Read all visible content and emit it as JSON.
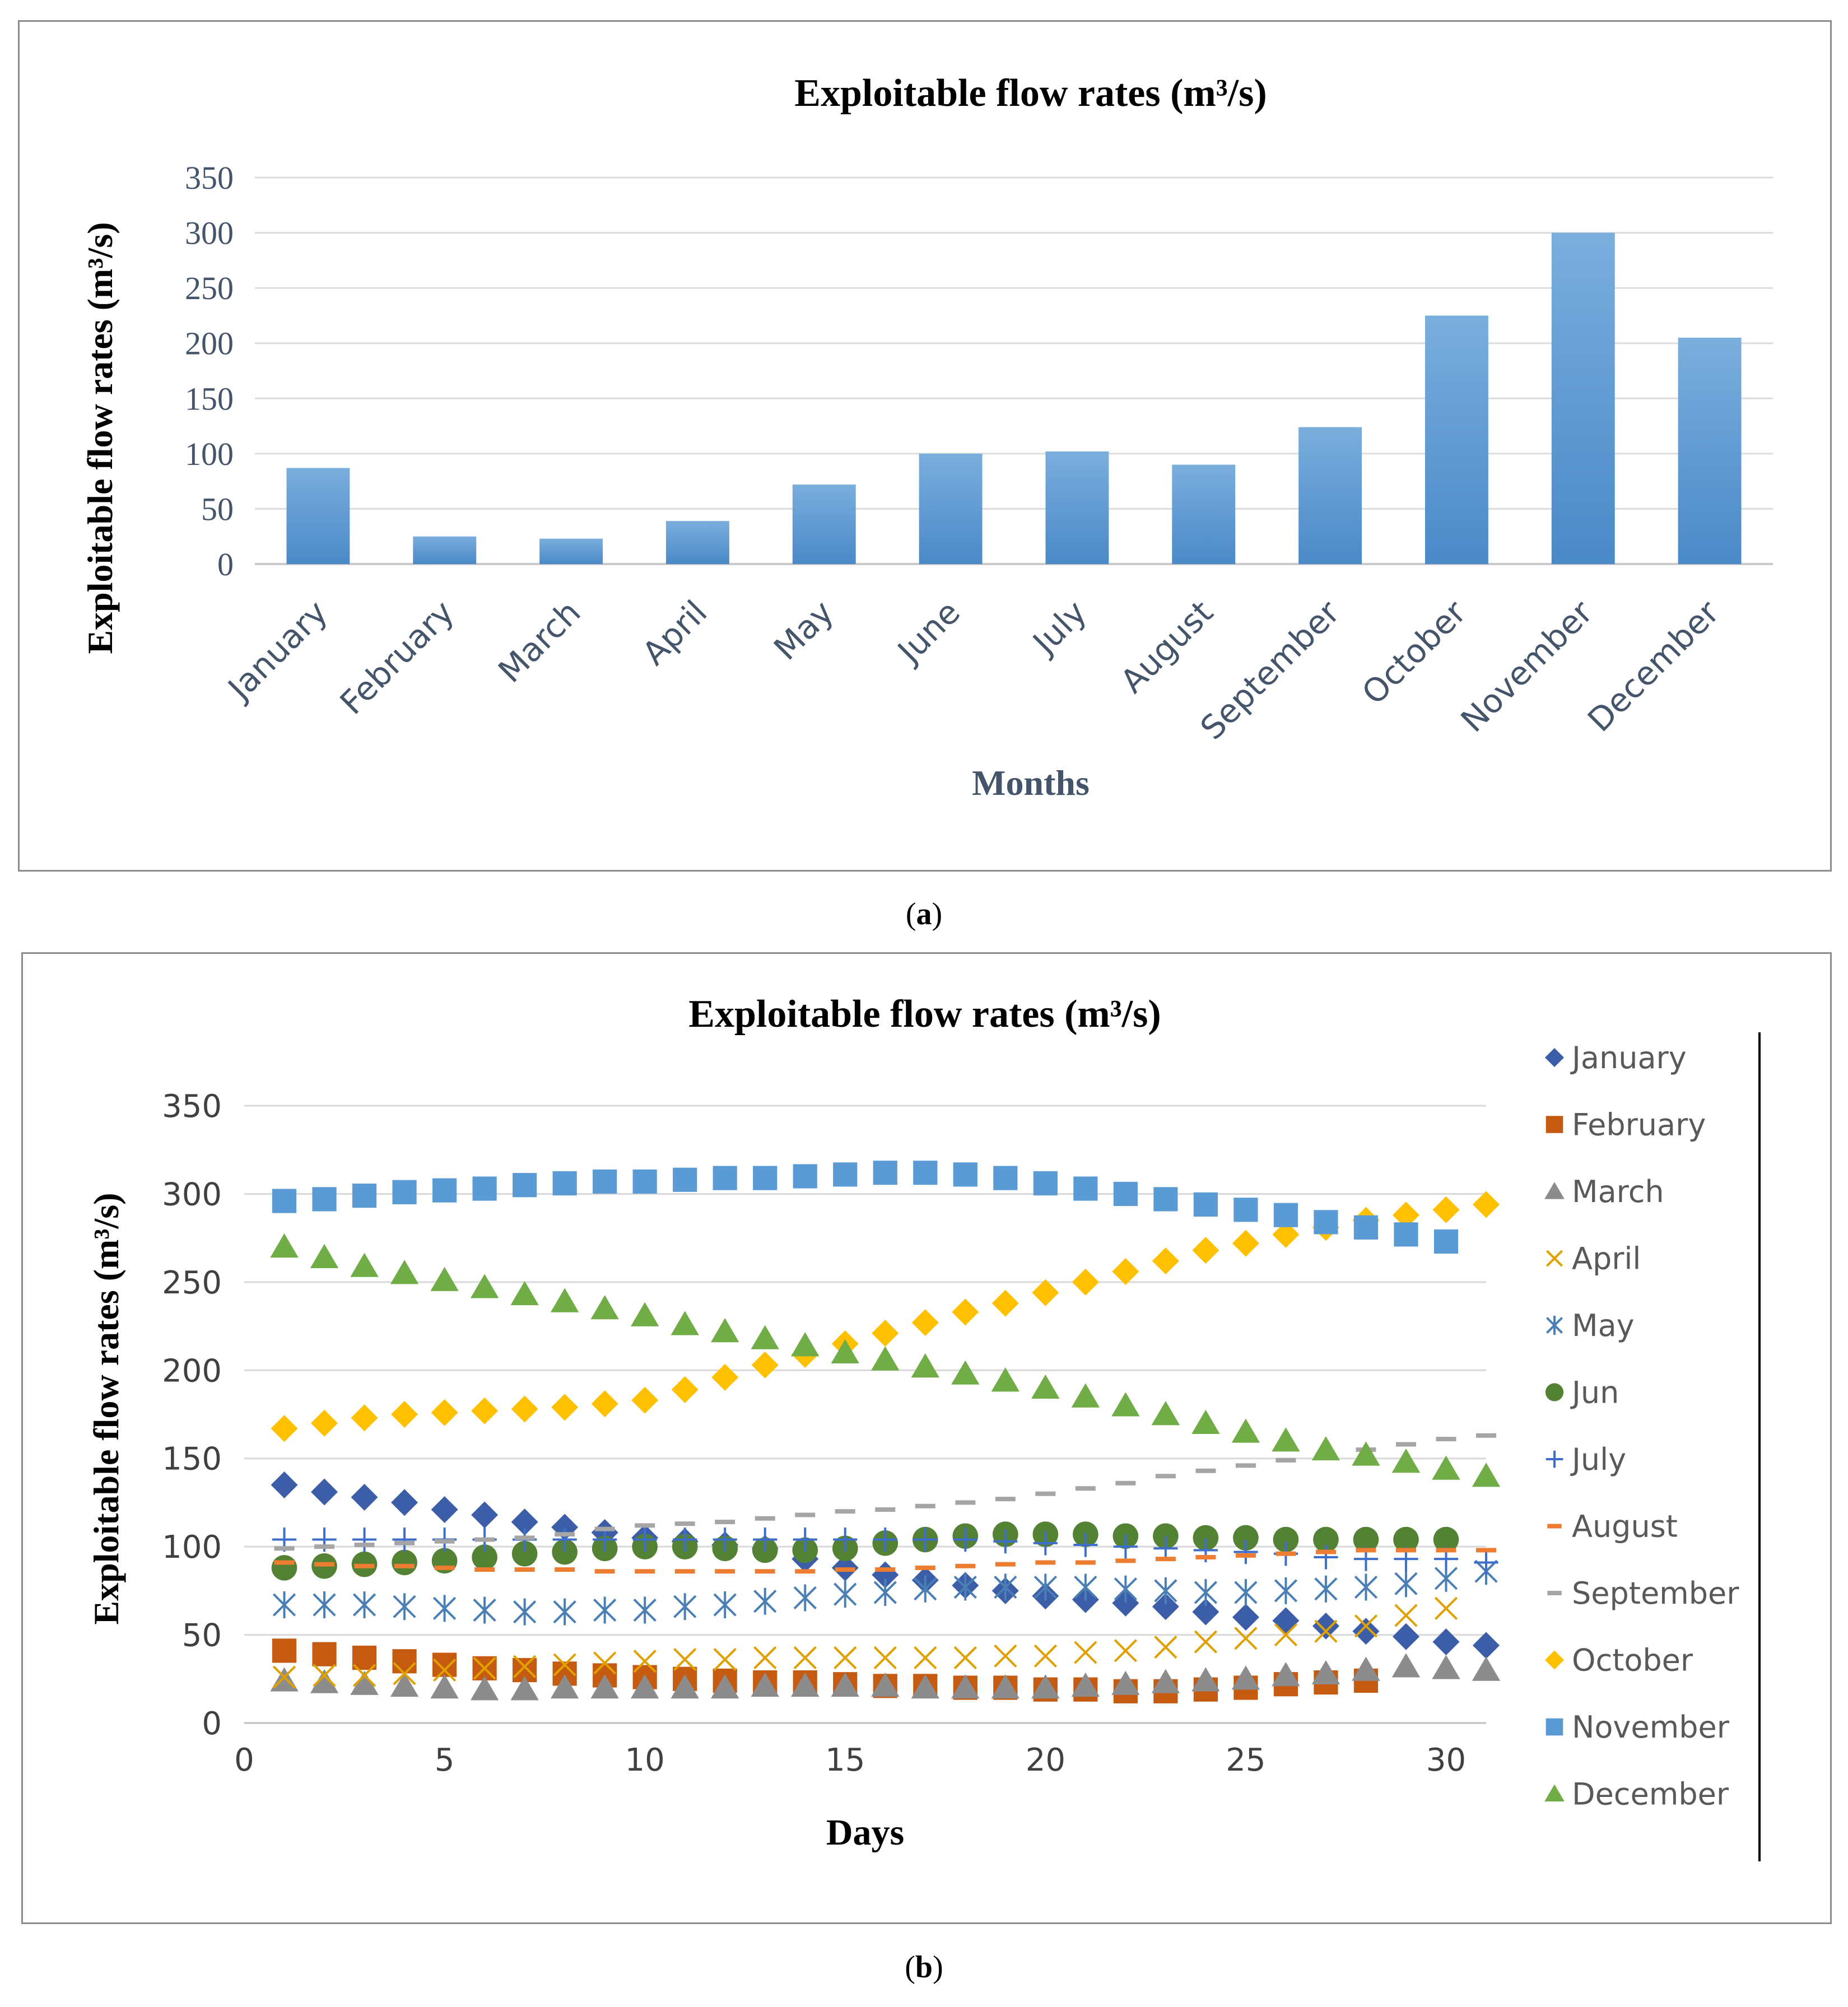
{
  "captions": {
    "a": "a",
    "b": "b"
  },
  "chart_data": [
    {
      "type": "bar",
      "title": "Exploitable flow rates (m³/s)",
      "xlabel": "Months",
      "ylabel": "Exploitable flow rates (m³/s)",
      "ylim": [
        0,
        350
      ],
      "yticks": [
        0,
        50,
        100,
        150,
        200,
        250,
        300,
        350
      ],
      "grid": true,
      "color": "#5b9bd5",
      "categories": [
        "January",
        "February",
        "March",
        "April",
        "May",
        "June",
        "July",
        "August",
        "September",
        "October",
        "November",
        "December"
      ],
      "values": [
        87,
        25,
        23,
        39,
        72,
        100,
        102,
        90,
        124,
        225,
        300,
        205
      ]
    },
    {
      "type": "scatter",
      "title": "Exploitable flow rates (m³/s)",
      "xlabel": "Days",
      "ylabel": "Exploitable flow rates (m³/s)",
      "xlim": [
        0,
        31
      ],
      "ylim": [
        0,
        350
      ],
      "xticks": [
        0,
        5,
        10,
        15,
        20,
        25,
        30
      ],
      "yticks": [
        0,
        50,
        100,
        150,
        200,
        250,
        300,
        350
      ],
      "grid": true,
      "legend": "right",
      "series": [
        {
          "name": "January",
          "marker": "diamond",
          "color": "#3c5ea8",
          "values": [
            135,
            131,
            128,
            125,
            121,
            118,
            114,
            111,
            108,
            105,
            103,
            101,
            99,
            93,
            88,
            84,
            81,
            78,
            75,
            72,
            70,
            68,
            66,
            63,
            60,
            58,
            55,
            52,
            49,
            46,
            44
          ]
        },
        {
          "name": "February",
          "marker": "square",
          "color": "#c55a11",
          "values": [
            41,
            39,
            37,
            35,
            33,
            31,
            30,
            28,
            27,
            26,
            25,
            24,
            23,
            23,
            22,
            21,
            21,
            20,
            20,
            19,
            19,
            18,
            18,
            19,
            20,
            22,
            23,
            24
          ]
        },
        {
          "name": "March",
          "marker": "triangle",
          "color": "#8c8c8c",
          "values": [
            24,
            23,
            22,
            21,
            20,
            19,
            19,
            20,
            20,
            20,
            20,
            20,
            21,
            21,
            21,
            21,
            20,
            20,
            20,
            20,
            21,
            22,
            23,
            24,
            25,
            27,
            28,
            30,
            32,
            31,
            30
          ]
        },
        {
          "name": "April",
          "marker": "x",
          "color": "#e0a000",
          "values": [
            26,
            27,
            27,
            28,
            30,
            31,
            32,
            33,
            34,
            35,
            36,
            36,
            37,
            37,
            37,
            37,
            37,
            37,
            38,
            38,
            40,
            41,
            43,
            46,
            48,
            50,
            52,
            55,
            61,
            65
          ]
        },
        {
          "name": "May",
          "marker": "asterisk",
          "color": "#4a7fb5",
          "values": [
            67,
            67,
            67,
            66,
            65,
            64,
            63,
            63,
            64,
            64,
            66,
            67,
            69,
            71,
            73,
            74,
            76,
            77,
            77,
            77,
            77,
            76,
            75,
            74,
            74,
            75,
            76,
            77,
            79,
            82,
            86
          ]
        },
        {
          "name": "Jun",
          "marker": "circle",
          "color": "#548235",
          "values": [
            88,
            89,
            90,
            91,
            92,
            94,
            96,
            97,
            99,
            100,
            100,
            99,
            98,
            98,
            99,
            102,
            104,
            106,
            107,
            107,
            107,
            106,
            106,
            105,
            105,
            104,
            104,
            104,
            104,
            104
          ]
        },
        {
          "name": "July",
          "marker": "plus",
          "color": "#3d6ec9",
          "values": [
            104,
            104,
            104,
            104,
            104,
            104,
            104,
            104,
            104,
            104,
            104,
            104,
            104,
            104,
            104,
            104,
            104,
            104,
            103,
            102,
            101,
            100,
            99,
            98,
            97,
            96,
            94,
            93,
            93,
            93,
            91
          ]
        },
        {
          "name": "August",
          "marker": "dash",
          "color": "#ed7d31",
          "values": [
            91,
            90,
            89,
            89,
            88,
            87,
            87,
            87,
            86,
            86,
            86,
            86,
            86,
            86,
            87,
            87,
            88,
            89,
            90,
            91,
            91,
            92,
            93,
            94,
            95,
            96,
            97,
            98,
            98,
            98,
            98
          ]
        },
        {
          "name": "September",
          "marker": "dash",
          "color": "#a5a5a5",
          "values": [
            99,
            100,
            101,
            102,
            103,
            104,
            105,
            107,
            110,
            112,
            113,
            114,
            116,
            118,
            120,
            121,
            123,
            125,
            127,
            130,
            133,
            136,
            140,
            143,
            146,
            149,
            152,
            155,
            158,
            161,
            163
          ]
        },
        {
          "name": "October",
          "marker": "diamond",
          "color": "#ffc000",
          "values": [
            167,
            170,
            173,
            175,
            176,
            177,
            178,
            179,
            181,
            183,
            189,
            196,
            203,
            209,
            215,
            221,
            227,
            233,
            238,
            244,
            250,
            256,
            262,
            268,
            272,
            277,
            281,
            285,
            288,
            291,
            294
          ]
        },
        {
          "name": "November",
          "marker": "square",
          "color": "#5b9bd5",
          "values": [
            296,
            297,
            299,
            301,
            302,
            303,
            305,
            306,
            307,
            307,
            308,
            309,
            309,
            310,
            311,
            312,
            312,
            311,
            309,
            306,
            303,
            300,
            297,
            294,
            291,
            288,
            284,
            281,
            277,
            273
          ]
        },
        {
          "name": "December",
          "marker": "triangle",
          "color": "#70ad47",
          "values": [
            270,
            264,
            259,
            255,
            251,
            247,
            243,
            239,
            235,
            231,
            226,
            222,
            218,
            214,
            210,
            206,
            202,
            198,
            194,
            190,
            185,
            180,
            175,
            170,
            165,
            160,
            155,
            152,
            148,
            144,
            140
          ]
        }
      ]
    }
  ]
}
